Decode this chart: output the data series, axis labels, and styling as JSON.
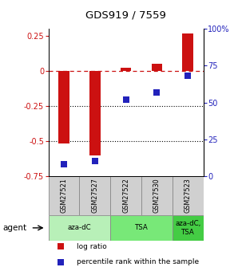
{
  "title": "GDS919 / 7559",
  "samples": [
    "GSM27521",
    "GSM27527",
    "GSM27522",
    "GSM27530",
    "GSM27523"
  ],
  "log_ratio": [
    -0.52,
    -0.6,
    0.02,
    0.05,
    0.27
  ],
  "percentile_rank": [
    8,
    10,
    52,
    57,
    68
  ],
  "groups": [
    {
      "label": "aza-dC",
      "span": [
        0,
        2
      ],
      "color": "#b8f0b8"
    },
    {
      "label": "TSA",
      "span": [
        2,
        4
      ],
      "color": "#78e878"
    },
    {
      "label": "aza-dC,\nTSA",
      "span": [
        4,
        5
      ],
      "color": "#44cc44"
    }
  ],
  "ylim_left": [
    -0.75,
    0.3
  ],
  "ylim_right": [
    0,
    100
  ],
  "yticks_left": [
    0.25,
    0.0,
    -0.25,
    -0.5,
    -0.75
  ],
  "yticks_right": [
    100,
    75,
    50,
    25,
    0
  ],
  "ytick_right_labels": [
    "100%",
    "75",
    "50",
    "25",
    "0"
  ],
  "bar_color": "#cc1111",
  "dot_color": "#2222bb",
  "bar_width": 0.35,
  "dot_size": 40,
  "agent_label": "agent",
  "legend_items": [
    {
      "color": "#cc1111",
      "label": "log ratio"
    },
    {
      "color": "#2222bb",
      "label": "percentile rank within the sample"
    }
  ],
  "sample_box_color": "#d0d0d0",
  "sample_box_edge": "#888888",
  "figsize": [
    3.03,
    3.45
  ],
  "dpi": 100
}
